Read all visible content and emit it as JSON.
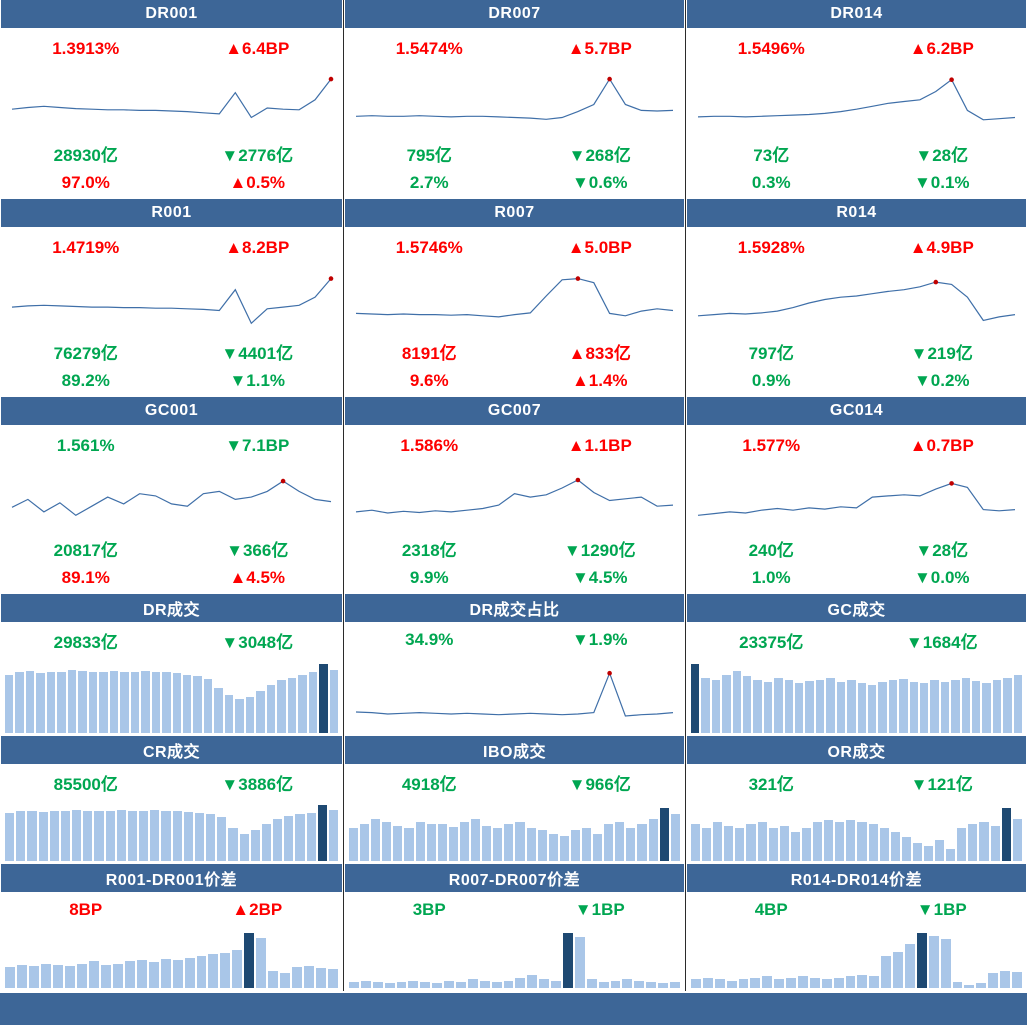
{
  "colors": {
    "red": "#FE0000",
    "green": "#00A651",
    "header_bg": "#3D6697",
    "header_text": "#FFFFFF",
    "line": "#3F6FA8",
    "marker": "#C00000",
    "bar_light": "#A9C6E8",
    "bar_dark": "#1E4972",
    "border": "#2B2B2B"
  },
  "panels": [
    {
      "title": "DR001",
      "kind": "rate",
      "rate": {
        "text": "1.3913%",
        "color": "red"
      },
      "rate_change": {
        "text": "▲6.4BP",
        "color": "red"
      },
      "volume": {
        "text": "28930亿",
        "color": "green"
      },
      "volume_change": {
        "text": "▼2776亿",
        "color": "green"
      },
      "share": {
        "text": "97.0%",
        "color": "red"
      },
      "share_change": {
        "text": "▲0.5%",
        "color": "red"
      }
    },
    {
      "title": "DR007",
      "kind": "rate",
      "rate": {
        "text": "1.5474%",
        "color": "red"
      },
      "rate_change": {
        "text": "▲5.7BP",
        "color": "red"
      },
      "volume": {
        "text": "795亿",
        "color": "green"
      },
      "volume_change": {
        "text": "▼268亿",
        "color": "green"
      },
      "share": {
        "text": "2.7%",
        "color": "green"
      },
      "share_change": {
        "text": "▼0.6%",
        "color": "green"
      }
    },
    {
      "title": "DR014",
      "kind": "rate",
      "rate": {
        "text": "1.5496%",
        "color": "red"
      },
      "rate_change": {
        "text": "▲6.2BP",
        "color": "red"
      },
      "volume": {
        "text": "73亿",
        "color": "green"
      },
      "volume_change": {
        "text": "▼28亿",
        "color": "green"
      },
      "share": {
        "text": "0.3%",
        "color": "green"
      },
      "share_change": {
        "text": "▼0.1%",
        "color": "green"
      }
    },
    {
      "title": "R001",
      "kind": "rate",
      "rate": {
        "text": "1.4719%",
        "color": "red"
      },
      "rate_change": {
        "text": "▲8.2BP",
        "color": "red"
      },
      "volume": {
        "text": "76279亿",
        "color": "green"
      },
      "volume_change": {
        "text": "▼4401亿",
        "color": "green"
      },
      "share": {
        "text": "89.2%",
        "color": "green"
      },
      "share_change": {
        "text": "▼1.1%",
        "color": "green"
      }
    },
    {
      "title": "R007",
      "kind": "rate",
      "rate": {
        "text": "1.5746%",
        "color": "red"
      },
      "rate_change": {
        "text": "▲5.0BP",
        "color": "red"
      },
      "volume": {
        "text": "8191亿",
        "color": "red"
      },
      "volume_change": {
        "text": "▲833亿",
        "color": "red"
      },
      "share": {
        "text": "9.6%",
        "color": "red"
      },
      "share_change": {
        "text": "▲1.4%",
        "color": "red"
      }
    },
    {
      "title": "R014",
      "kind": "rate",
      "rate": {
        "text": "1.5928%",
        "color": "red"
      },
      "rate_change": {
        "text": "▲4.9BP",
        "color": "red"
      },
      "volume": {
        "text": "797亿",
        "color": "green"
      },
      "volume_change": {
        "text": "▼219亿",
        "color": "green"
      },
      "share": {
        "text": "0.9%",
        "color": "green"
      },
      "share_change": {
        "text": "▼0.2%",
        "color": "green"
      }
    },
    {
      "title": "GC001",
      "kind": "rate",
      "rate": {
        "text": "1.561%",
        "color": "green"
      },
      "rate_change": {
        "text": "▼7.1BP",
        "color": "green"
      },
      "volume": {
        "text": "20817亿",
        "color": "green"
      },
      "volume_change": {
        "text": "▼366亿",
        "color": "green"
      },
      "share": {
        "text": "89.1%",
        "color": "red"
      },
      "share_change": {
        "text": "▲4.5%",
        "color": "red"
      }
    },
    {
      "title": "GC007",
      "kind": "rate",
      "rate": {
        "text": "1.586%",
        "color": "red"
      },
      "rate_change": {
        "text": "▲1.1BP",
        "color": "red"
      },
      "volume": {
        "text": "2318亿",
        "color": "green"
      },
      "volume_change": {
        "text": "▼1290亿",
        "color": "green"
      },
      "share": {
        "text": "9.9%",
        "color": "green"
      },
      "share_change": {
        "text": "▼4.5%",
        "color": "green"
      }
    },
    {
      "title": "GC014",
      "kind": "rate",
      "rate": {
        "text": "1.577%",
        "color": "red"
      },
      "rate_change": {
        "text": "▲0.7BP",
        "color": "red"
      },
      "volume": {
        "text": "240亿",
        "color": "green"
      },
      "volume_change": {
        "text": "▼28亿",
        "color": "green"
      },
      "share": {
        "text": "1.0%",
        "color": "green"
      },
      "share_change": {
        "text": "▼0.0%",
        "color": "green"
      }
    },
    {
      "title": "DR成交",
      "kind": "volume",
      "value": {
        "text": "29833亿",
        "color": "green"
      },
      "value_change": {
        "text": "▼3048亿",
        "color": "green"
      }
    },
    {
      "title": "DR成交占比",
      "kind": "volume",
      "value": {
        "text": "34.9%",
        "color": "green"
      },
      "value_change": {
        "text": "▼1.9%",
        "color": "green"
      }
    },
    {
      "title": "GC成交",
      "kind": "volume",
      "value": {
        "text": "23375亿",
        "color": "green"
      },
      "value_change": {
        "text": "▼1684亿",
        "color": "green"
      }
    },
    {
      "title": "CR成交",
      "kind": "volume",
      "value": {
        "text": "85500亿",
        "color": "green"
      },
      "value_change": {
        "text": "▼3886亿",
        "color": "green"
      }
    },
    {
      "title": "IBO成交",
      "kind": "volume",
      "value": {
        "text": "4918亿",
        "color": "green"
      },
      "value_change": {
        "text": "▼966亿",
        "color": "green"
      }
    },
    {
      "title": "OR成交",
      "kind": "volume",
      "value": {
        "text": "321亿",
        "color": "green"
      },
      "value_change": {
        "text": "▼121亿",
        "color": "green"
      }
    },
    {
      "title": "R001-DR001价差",
      "kind": "spread",
      "value": {
        "text": "8BP",
        "color": "red"
      },
      "value_change": {
        "text": "▲2BP",
        "color": "red"
      }
    },
    {
      "title": "R007-DR007价差",
      "kind": "spread",
      "value": {
        "text": "3BP",
        "color": "green"
      },
      "value_change": {
        "text": "▼1BP",
        "color": "green"
      }
    },
    {
      "title": "R014-DR014价差",
      "kind": "spread",
      "value": {
        "text": "4BP",
        "color": "green"
      },
      "value_change": {
        "text": "▼1BP",
        "color": "green"
      }
    }
  ],
  "chart_data": [
    {
      "type": "line",
      "title": "DR001",
      "ylim": [
        0,
        1
      ],
      "marker_index": 20,
      "values": [
        0.42,
        0.45,
        0.47,
        0.45,
        0.43,
        0.42,
        0.41,
        0.41,
        0.4,
        0.4,
        0.39,
        0.38,
        0.36,
        0.34,
        0.7,
        0.28,
        0.44,
        0.42,
        0.41,
        0.58,
        0.93
      ]
    },
    {
      "type": "line",
      "title": "DR007",
      "ylim": [
        0,
        1
      ],
      "marker_index": 16,
      "values": [
        0.3,
        0.31,
        0.3,
        0.3,
        0.31,
        0.3,
        0.29,
        0.3,
        0.3,
        0.29,
        0.28,
        0.27,
        0.25,
        0.28,
        0.38,
        0.5,
        0.93,
        0.5,
        0.4,
        0.39,
        0.4
      ]
    },
    {
      "type": "line",
      "title": "DR014",
      "ylim": [
        0,
        1
      ],
      "marker_index": 16,
      "values": [
        0.29,
        0.3,
        0.3,
        0.29,
        0.3,
        0.31,
        0.32,
        0.33,
        0.35,
        0.38,
        0.42,
        0.47,
        0.52,
        0.55,
        0.58,
        0.72,
        0.92,
        0.4,
        0.24,
        0.26,
        0.28
      ]
    },
    {
      "type": "line",
      "title": "R001",
      "ylim": [
        0,
        1
      ],
      "marker_index": 20,
      "values": [
        0.43,
        0.45,
        0.46,
        0.45,
        0.44,
        0.43,
        0.43,
        0.42,
        0.42,
        0.41,
        0.41,
        0.4,
        0.39,
        0.37,
        0.73,
        0.15,
        0.4,
        0.43,
        0.46,
        0.6,
        0.92
      ]
    },
    {
      "type": "line",
      "title": "R007",
      "ylim": [
        0,
        1
      ],
      "marker_index": 14,
      "values": [
        0.32,
        0.31,
        0.3,
        0.31,
        0.3,
        0.3,
        0.29,
        0.3,
        0.28,
        0.26,
        0.3,
        0.33,
        0.62,
        0.9,
        0.92,
        0.85,
        0.32,
        0.28,
        0.36,
        0.4,
        0.37
      ]
    },
    {
      "type": "line",
      "title": "R014",
      "ylim": [
        0,
        1
      ],
      "marker_index": 15,
      "values": [
        0.28,
        0.3,
        0.32,
        0.31,
        0.33,
        0.36,
        0.42,
        0.5,
        0.56,
        0.6,
        0.62,
        0.66,
        0.7,
        0.73,
        0.78,
        0.86,
        0.82,
        0.6,
        0.2,
        0.26,
        0.3
      ]
    },
    {
      "type": "line",
      "title": "GC001",
      "ylim": [
        0,
        1
      ],
      "marker_index": 17,
      "values": [
        0.38,
        0.52,
        0.3,
        0.46,
        0.24,
        0.4,
        0.56,
        0.44,
        0.62,
        0.58,
        0.44,
        0.4,
        0.62,
        0.66,
        0.52,
        0.56,
        0.66,
        0.84,
        0.66,
        0.52,
        0.48
      ]
    },
    {
      "type": "line",
      "title": "GC007",
      "ylim": [
        0,
        1
      ],
      "marker_index": 14,
      "values": [
        0.3,
        0.33,
        0.28,
        0.31,
        0.29,
        0.32,
        0.3,
        0.33,
        0.36,
        0.42,
        0.62,
        0.56,
        0.6,
        0.72,
        0.86,
        0.64,
        0.5,
        0.53,
        0.56,
        0.4,
        0.42
      ]
    },
    {
      "type": "line",
      "title": "GC014",
      "ylim": [
        0,
        1
      ],
      "marker_index": 16,
      "values": [
        0.24,
        0.27,
        0.3,
        0.28,
        0.33,
        0.36,
        0.33,
        0.37,
        0.35,
        0.39,
        0.37,
        0.56,
        0.58,
        0.6,
        0.58,
        0.7,
        0.8,
        0.73,
        0.34,
        0.32,
        0.34
      ]
    },
    {
      "type": "bar",
      "title": "DR成交",
      "ylim": [
        0,
        1
      ],
      "highlight_index": 30,
      "values": [
        0.8,
        0.83,
        0.85,
        0.82,
        0.84,
        0.83,
        0.86,
        0.85,
        0.84,
        0.83,
        0.85,
        0.84,
        0.83,
        0.85,
        0.84,
        0.83,
        0.82,
        0.8,
        0.78,
        0.74,
        0.62,
        0.52,
        0.46,
        0.5,
        0.58,
        0.66,
        0.72,
        0.76,
        0.8,
        0.83,
        0.95,
        0.86
      ]
    },
    {
      "type": "line",
      "title": "DR成交占比",
      "ylim": [
        0,
        1
      ],
      "marker_index": 16,
      "values": [
        0.28,
        0.27,
        0.25,
        0.26,
        0.27,
        0.26,
        0.25,
        0.26,
        0.25,
        0.24,
        0.25,
        0.26,
        0.25,
        0.24,
        0.25,
        0.27,
        0.85,
        0.22,
        0.24,
        0.25,
        0.27
      ]
    },
    {
      "type": "bar",
      "title": "GC成交",
      "ylim": [
        0,
        1
      ],
      "highlight_index": 0,
      "values": [
        0.95,
        0.76,
        0.72,
        0.8,
        0.85,
        0.78,
        0.73,
        0.7,
        0.76,
        0.72,
        0.69,
        0.71,
        0.73,
        0.75,
        0.7,
        0.72,
        0.68,
        0.66,
        0.7,
        0.72,
        0.74,
        0.7,
        0.68,
        0.72,
        0.7,
        0.73,
        0.75,
        0.71,
        0.69,
        0.72,
        0.76,
        0.79
      ]
    },
    {
      "type": "bar",
      "title": "CR成交",
      "ylim": [
        0,
        1
      ],
      "highlight_index": 28,
      "values": [
        0.82,
        0.84,
        0.85,
        0.83,
        0.85,
        0.84,
        0.86,
        0.85,
        0.84,
        0.85,
        0.86,
        0.85,
        0.84,
        0.86,
        0.85,
        0.84,
        0.83,
        0.82,
        0.8,
        0.74,
        0.56,
        0.46,
        0.52,
        0.62,
        0.72,
        0.76,
        0.79,
        0.82,
        0.95,
        0.86
      ]
    },
    {
      "type": "bar",
      "title": "IBO成交",
      "ylim": [
        0,
        1
      ],
      "highlight_index": 28,
      "values": [
        0.56,
        0.62,
        0.72,
        0.66,
        0.6,
        0.56,
        0.66,
        0.62,
        0.63,
        0.58,
        0.66,
        0.72,
        0.6,
        0.56,
        0.62,
        0.66,
        0.56,
        0.52,
        0.46,
        0.42,
        0.52,
        0.56,
        0.46,
        0.62,
        0.66,
        0.56,
        0.62,
        0.72,
        0.9,
        0.8
      ]
    },
    {
      "type": "bar",
      "title": "OR成交",
      "ylim": [
        0,
        1
      ],
      "highlight_index": 28,
      "values": [
        0.62,
        0.56,
        0.66,
        0.6,
        0.56,
        0.62,
        0.66,
        0.56,
        0.6,
        0.5,
        0.56,
        0.66,
        0.7,
        0.66,
        0.7,
        0.66,
        0.62,
        0.56,
        0.5,
        0.4,
        0.3,
        0.26,
        0.36,
        0.2,
        0.56,
        0.62,
        0.66,
        0.6,
        0.9,
        0.72
      ]
    },
    {
      "type": "bar",
      "title": "R001-DR001价差",
      "ylim": [
        0,
        1
      ],
      "highlight_index": 20,
      "values": [
        0.36,
        0.4,
        0.38,
        0.42,
        0.4,
        0.38,
        0.42,
        0.46,
        0.4,
        0.42,
        0.46,
        0.48,
        0.44,
        0.5,
        0.48,
        0.52,
        0.55,
        0.58,
        0.6,
        0.66,
        0.95,
        0.86,
        0.3,
        0.26,
        0.36,
        0.38,
        0.34,
        0.32
      ]
    },
    {
      "type": "bar",
      "title": "R007-DR007价差",
      "ylim": [
        0,
        1
      ],
      "highlight_index": 18,
      "values": [
        0.1,
        0.12,
        0.1,
        0.08,
        0.1,
        0.12,
        0.1,
        0.09,
        0.12,
        0.1,
        0.15,
        0.12,
        0.1,
        0.12,
        0.18,
        0.22,
        0.15,
        0.12,
        0.95,
        0.88,
        0.15,
        0.1,
        0.12,
        0.15,
        0.12,
        0.1,
        0.08,
        0.1
      ]
    },
    {
      "type": "bar",
      "title": "R014-DR014价差",
      "ylim": [
        0,
        1
      ],
      "highlight_index": 19,
      "values": [
        0.16,
        0.18,
        0.15,
        0.12,
        0.15,
        0.18,
        0.2,
        0.15,
        0.18,
        0.2,
        0.18,
        0.15,
        0.18,
        0.2,
        0.22,
        0.2,
        0.55,
        0.62,
        0.76,
        0.95,
        0.9,
        0.85,
        0.1,
        0.06,
        0.08,
        0.26,
        0.3,
        0.28
      ]
    }
  ]
}
